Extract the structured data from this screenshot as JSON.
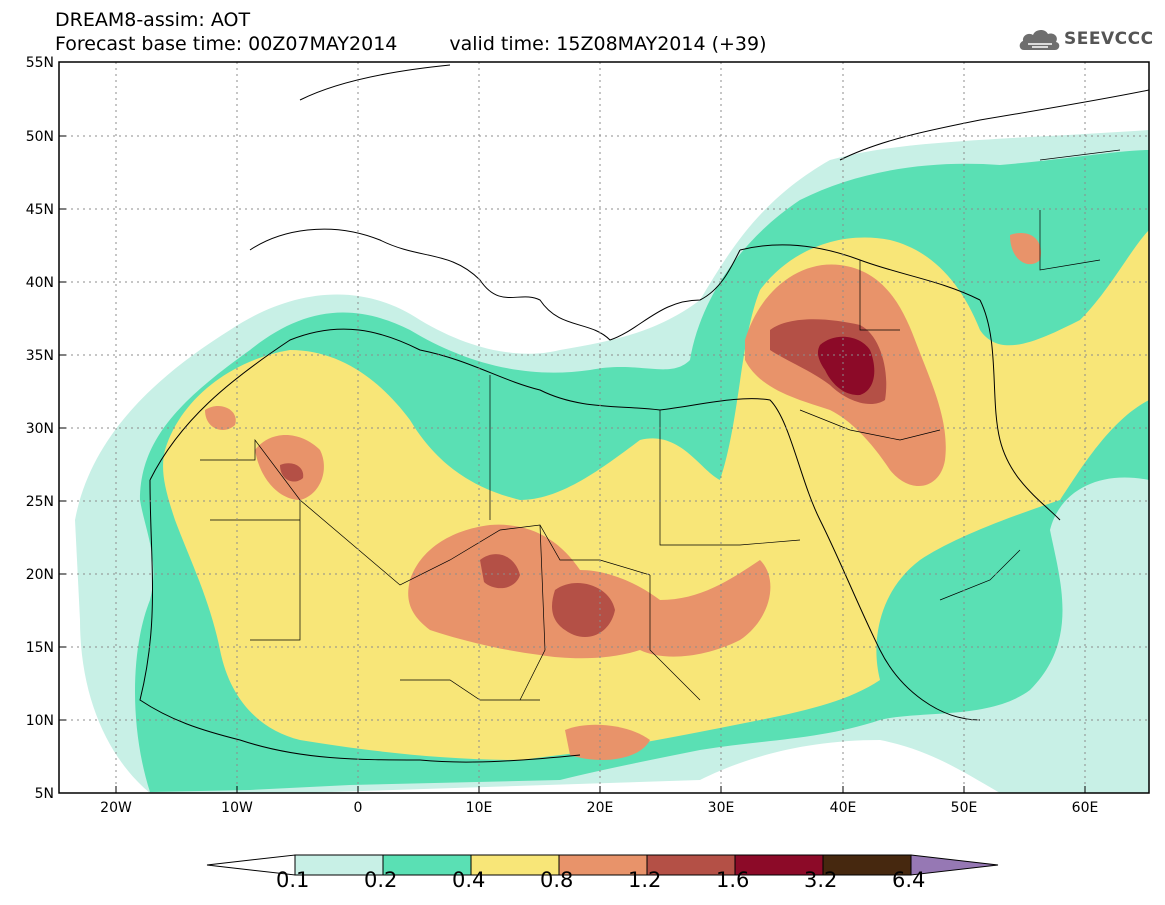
{
  "header": {
    "line1": "DREAM8-assim: AOT",
    "base_time": "Forecast base time: 00Z07MAY2014",
    "valid_time": "valid time: 15Z08MAY2014 (+39)"
  },
  "logo": {
    "text": "SEEVCCC",
    "icon": "cloud-icon"
  },
  "axes": {
    "lat_labels": [
      "55N",
      "50N",
      "45N",
      "40N",
      "35N",
      "30N",
      "25N",
      "20N",
      "15N",
      "10N",
      "5N"
    ],
    "lon_labels": [
      "20W",
      "10W",
      "0",
      "10E",
      "20E",
      "30E",
      "40E",
      "50E",
      "60E"
    ]
  },
  "colorbar": {
    "labels": [
      "0.1",
      "0.2",
      "0.4",
      "0.8",
      "1.2",
      "1.6",
      "3.2",
      "6.4"
    ],
    "colors": [
      "#ffffff",
      "#c8f0e6",
      "#5ae0b4",
      "#f8e678",
      "#e8936a",
      "#b45046",
      "#8c0a28",
      "#46280f",
      "#9678b4"
    ]
  }
}
